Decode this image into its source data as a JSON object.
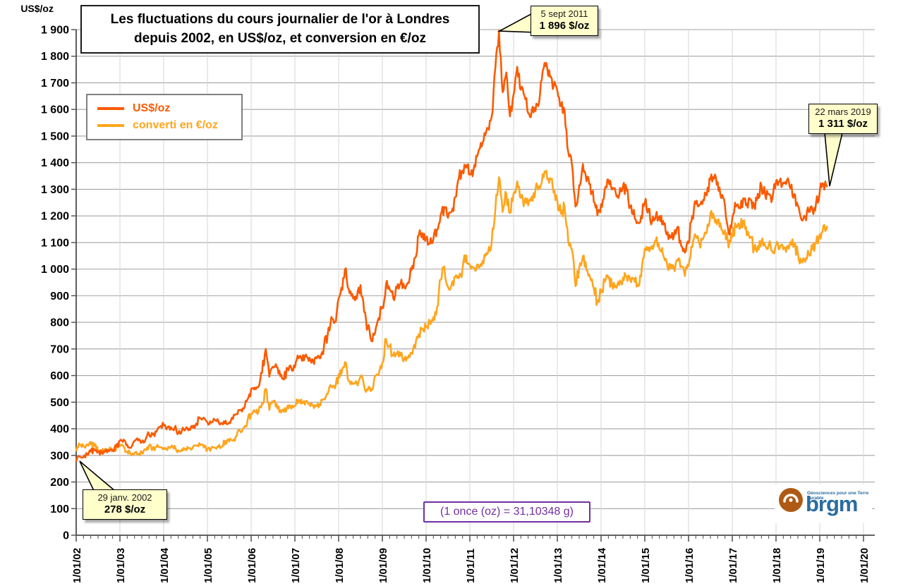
{
  "title": "Les fluctuations du cours journalier de l'or à Londres depuis 2002, en US$/oz, et conversion en €/oz",
  "y_axis": {
    "label": "US$/oz"
  },
  "legend": {
    "items": [
      {
        "label": "US$/oz",
        "color": "#FB5A00"
      },
      {
        "label": "converti en €/oz",
        "color": "#FFA51E"
      }
    ]
  },
  "annotations": [
    {
      "date": "5 sept 2011",
      "value": "1 896 $/oz"
    },
    {
      "date": "22 mars 2019",
      "value": "1 311 $/oz"
    },
    {
      "date": "29 janv. 2002",
      "value": "278 $/oz"
    }
  ],
  "note": "(1 once (oz) = 31,10348 g)",
  "logo": {
    "text": "brgm",
    "tagline": "Géosciences pour une Terre durable"
  },
  "chart_data": {
    "type": "line",
    "title": "Les fluctuations du cours journalier de l'or à Londres depuis 2002, en US$/oz, et conversion en €/oz",
    "ylabel": "US$/oz",
    "ylim": [
      0,
      1900
    ],
    "y_tick_step": 100,
    "y_tick_labels": [
      "0",
      "100",
      "200",
      "300",
      "400",
      "500",
      "600",
      "700",
      "800",
      "900",
      "1 000",
      "1 100",
      "1 200",
      "1 300",
      "1 400",
      "1 500",
      "1 600",
      "1 700",
      "1 800",
      "1 900"
    ],
    "x_tick_labels": [
      "1/01/02",
      "1/01/03",
      "1/01/04",
      "1/01/05",
      "1/01/06",
      "1/01/07",
      "1/01/08",
      "1/01/09",
      "1/01/10",
      "1/01/11",
      "1/01/12",
      "1/01/13",
      "1/01/14",
      "1/01/15",
      "1/01/16",
      "1/01/17",
      "1/01/18",
      "1/01/19",
      "1/01/20"
    ],
    "x_tick_years": [
      2002,
      2003,
      2004,
      2005,
      2006,
      2007,
      2008,
      2009,
      2010,
      2011,
      2012,
      2013,
      2014,
      2015,
      2016,
      2017,
      2018,
      2019,
      2020
    ],
    "x_start_year": 2002,
    "x_interval": "monthly",
    "grid": true,
    "legend_position": "top-left",
    "key_points": [
      {
        "date": "2002-01-29",
        "series": "US$/oz",
        "value": 278
      },
      {
        "date": "2011-09-05",
        "series": "US$/oz",
        "value": 1896
      },
      {
        "date": "2019-03-22",
        "series": "US$/oz",
        "value": 1311
      }
    ],
    "series": [
      {
        "name": "US$/oz",
        "color": "#FB5A00",
        "values": [
          278,
          295,
          294,
          302,
          314,
          321,
          313,
          310,
          319,
          316,
          319,
          333,
          356,
          359,
          340,
          328,
          355,
          356,
          351,
          359,
          379,
          378,
          389,
          407,
          414,
          405,
          406,
          403,
          383,
          392,
          398,
          400,
          405,
          420,
          439,
          442,
          424,
          423,
          434,
          429,
          421,
          430,
          424,
          437,
          456,
          470,
          476,
          510,
          550,
          555,
          557,
          610,
          700,
          596,
          633,
          632,
          598,
          585,
          627,
          629,
          631,
          665,
          655,
          679,
          667,
          655,
          665,
          665,
          712,
          755,
          820,
          803,
          890,
          922,
          1003,
          910,
          889,
          889,
          940,
          839,
          780,
          730,
          760,
          816,
          858,
          943,
          924,
          890,
          929,
          946,
          934,
          949,
          996,
          1043,
          1127,
          1135,
          1118,
          1095,
          1113,
          1149,
          1205,
          1233,
          1193,
          1216,
          1271,
          1342,
          1370,
          1391,
          1356,
          1373,
          1424,
          1474,
          1511,
          1529,
          1573,
          1757,
          1896,
          1665,
          1739,
          1574,
          1656,
          1760,
          1674,
          1650,
          1586,
          1597,
          1594,
          1626,
          1745,
          1775,
          1722,
          1688,
          1671,
          1613,
          1598,
          1440,
          1393,
          1235,
          1315,
          1395,
          1330,
          1320,
          1253,
          1202,
          1244,
          1300,
          1336,
          1299,
          1288,
          1279,
          1311,
          1296,
          1237,
          1223,
          1176,
          1200,
          1251,
          1227,
          1178,
          1198,
          1199,
          1181,
          1130,
          1118,
          1125,
          1159,
          1086,
          1062,
          1098,
          1200,
          1246,
          1242,
          1260,
          1277,
          1337,
          1340,
          1327,
          1267,
          1238,
          1135,
          1192,
          1235,
          1231,
          1266,
          1246,
          1260,
          1237,
          1283,
          1315,
          1280,
          1282,
          1265,
          1331,
          1331,
          1325,
          1334,
          1303,
          1282,
          1238,
          1185,
          1198,
          1215,
          1221,
          1250,
          1292,
          1320,
          1311
        ]
      },
      {
        "name": "converti en €/oz",
        "color": "#FFA51E",
        "values": [
          318,
          339,
          336,
          341,
          342,
          336,
          316,
          317,
          325,
          322,
          319,
          327,
          335,
          333,
          315,
          302,
          307,
          305,
          309,
          322,
          338,
          323,
          332,
          331,
          328,
          320,
          331,
          336,
          319,
          323,
          324,
          328,
          331,
          336,
          338,
          330,
          323,
          325,
          329,
          332,
          332,
          354,
          352,
          356,
          372,
          391,
          404,
          430,
          455,
          465,
          463,
          497,
          550,
          471,
          499,
          493,
          470,
          464,
          487,
          476,
          485,
          508,
          495,
          503,
          494,
          488,
          485,
          488,
          512,
          531,
          558,
          552,
          605,
          625,
          648,
          578,
          571,
          571,
          596,
          560,
          545,
          549,
          598,
          604,
          648,
          737,
          708,
          675,
          681,
          675,
          663,
          665,
          684,
          704,
          756,
          777,
          783,
          801,
          820,
          857,
          961,
          1010,
          934,
          943,
          972,
          966,
          1003,
          1052,
          1015,
          1006,
          1017,
          1019,
          1054,
          1063,
          1103,
          1225,
          1345,
          1215,
          1283,
          1211,
          1284,
          1330,
          1268,
          1254,
          1240,
          1273,
          1297,
          1311,
          1357,
          1370,
          1342,
          1287,
          1256,
          1208,
          1233,
          1105,
          1073,
          936,
          1005,
          1048,
          996,
          968,
          929,
          877,
          913,
          952,
          967,
          941,
          938,
          940,
          968,
          973,
          959,
          965,
          943,
          973,
          1077,
          1081,
          1088,
          1107,
          1075,
          1054,
          1027,
          1004,
          1003,
          1031,
          1011,
          974,
          1011,
          1082,
          1123,
          1095,
          1114,
          1137,
          1209,
          1195,
          1184,
          1149,
          1146,
          1081,
          1121,
          1160,
          1151,
          1181,
          1127,
          1122,
          1075,
          1086,
          1104,
          1088,
          1092,
          1068,
          1091,
          1078,
          1074,
          1086,
          1103,
          1098,
          1059,
          1026,
          1027,
          1058,
          1074,
          1098,
          1131,
          1163,
          1160
        ]
      }
    ]
  }
}
